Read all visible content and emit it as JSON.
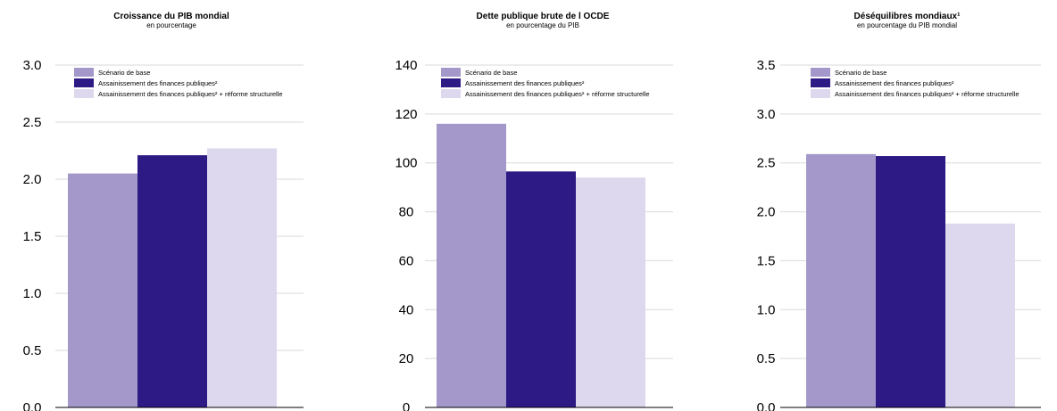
{
  "chart_data": [
    {
      "type": "bar",
      "title": "Croissance du PIB mondial",
      "subtitle": "en pourcentage",
      "categories": [
        ""
      ],
      "series": [
        {
          "name": "Scénario de base",
          "values": [
            2.05
          ]
        },
        {
          "name": "Assainissement des finances publiques²",
          "values": [
            2.21
          ]
        },
        {
          "name": "Assainissement des finances publiques² + réforme structurelle",
          "values": [
            2.27
          ]
        }
      ],
      "ylim": [
        0,
        3.0
      ],
      "yticks": [
        "0.0",
        "0.5",
        "1.0",
        "1.5",
        "2.0",
        "2.5",
        "3.0"
      ],
      "legend_position": "top",
      "grid": true
    },
    {
      "type": "bar",
      "title": "Dette publique brute de l OCDE",
      "subtitle": "en pourcentage du PIB",
      "categories": [
        ""
      ],
      "series": [
        {
          "name": "Scénario de base",
          "values": [
            116
          ]
        },
        {
          "name": "Assainissement des finances publiques²",
          "values": [
            96.5
          ]
        },
        {
          "name": "Assainissement des finances publiques² + réforme structurelle",
          "values": [
            94
          ]
        }
      ],
      "ylim": [
        0,
        140
      ],
      "yticks": [
        "0",
        "20",
        "40",
        "60",
        "80",
        "100",
        "120",
        "140"
      ],
      "legend_position": "top",
      "grid": true
    },
    {
      "type": "bar",
      "title": "Déséquilibres mondiaux¹",
      "subtitle": "en pourcentage du PIB mondial",
      "categories": [
        ""
      ],
      "series": [
        {
          "name": "Scénario de base",
          "values": [
            2.59
          ]
        },
        {
          "name": "Assainissement des finances publiques²",
          "values": [
            2.57
          ]
        },
        {
          "name": "Assainissement des finances publiques² + réforme structurelle",
          "values": [
            1.88
          ]
        }
      ],
      "ylim": [
        0,
        3.5
      ],
      "yticks": [
        "0.0",
        "0.5",
        "1.0",
        "1.5",
        "2.0",
        "2.5",
        "3.0",
        "3.5"
      ],
      "legend_position": "top",
      "grid": true
    }
  ],
  "colors": {
    "series": [
      "#a398c9",
      "#2e1a85",
      "#ddd8ee"
    ],
    "grid": "#d9d9d9"
  }
}
